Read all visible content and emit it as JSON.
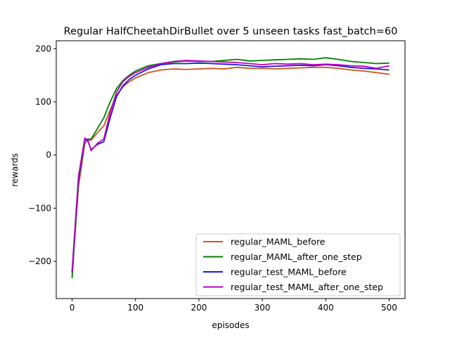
{
  "chart_data": {
    "type": "line",
    "title": "Regular HalfCheetahDirBullet over 5 unseen tasks fast_batch=60",
    "xlabel": "episodes",
    "ylabel": "rewards",
    "xlim": [
      -25,
      525
    ],
    "ylim": [
      -270,
      215
    ],
    "xticks": [
      0,
      100,
      200,
      300,
      400,
      500
    ],
    "yticks": [
      -200,
      -100,
      0,
      100,
      200
    ],
    "xtick_labels": [
      "0",
      "100",
      "200",
      "300",
      "400",
      "500"
    ],
    "ytick_labels": [
      "−200",
      "−100",
      "0",
      "100",
      "200"
    ],
    "grid": false,
    "legend_position": "lower-right",
    "x": [
      0,
      10,
      20,
      25,
      30,
      40,
      50,
      60,
      70,
      80,
      90,
      100,
      120,
      140,
      160,
      180,
      200,
      220,
      240,
      260,
      280,
      300,
      320,
      340,
      360,
      380,
      400,
      420,
      440,
      460,
      480,
      500
    ],
    "series": [
      {
        "name": "regular_MAML_before",
        "color": "#d2521e",
        "values": [
          -225,
          -60,
          22,
          28,
          28,
          42,
          55,
          85,
          112,
          128,
          138,
          145,
          155,
          160,
          162,
          161,
          162,
          163,
          162,
          165,
          163,
          163,
          162,
          163,
          164,
          165,
          165,
          163,
          160,
          158,
          155,
          152
        ]
      },
      {
        "name": "regular_MAML_after_one_step",
        "color": "#008000",
        "values": [
          -232,
          -50,
          28,
          30,
          30,
          50,
          70,
          100,
          125,
          140,
          150,
          158,
          168,
          172,
          175,
          177,
          176,
          176,
          178,
          180,
          177,
          178,
          179,
          180,
          181,
          180,
          183,
          180,
          176,
          174,
          172,
          173
        ]
      },
      {
        "name": "regular_test_MAML_before",
        "color": "#1a1ad6",
        "values": [
          -220,
          -45,
          30,
          26,
          10,
          20,
          25,
          70,
          110,
          130,
          142,
          150,
          162,
          170,
          172,
          172,
          173,
          172,
          171,
          170,
          168,
          166,
          167,
          168,
          169,
          168,
          170,
          168,
          165,
          163,
          162,
          160
        ]
      },
      {
        "name": "regular_test_MAML_after_one_step",
        "color": "#c000c0",
        "values": [
          -218,
          -40,
          32,
          28,
          8,
          22,
          30,
          80,
          118,
          138,
          148,
          155,
          165,
          172,
          176,
          178,
          177,
          176,
          175,
          174,
          172,
          170,
          172,
          171,
          172,
          170,
          171,
          170,
          168,
          167,
          163,
          168
        ]
      }
    ]
  }
}
